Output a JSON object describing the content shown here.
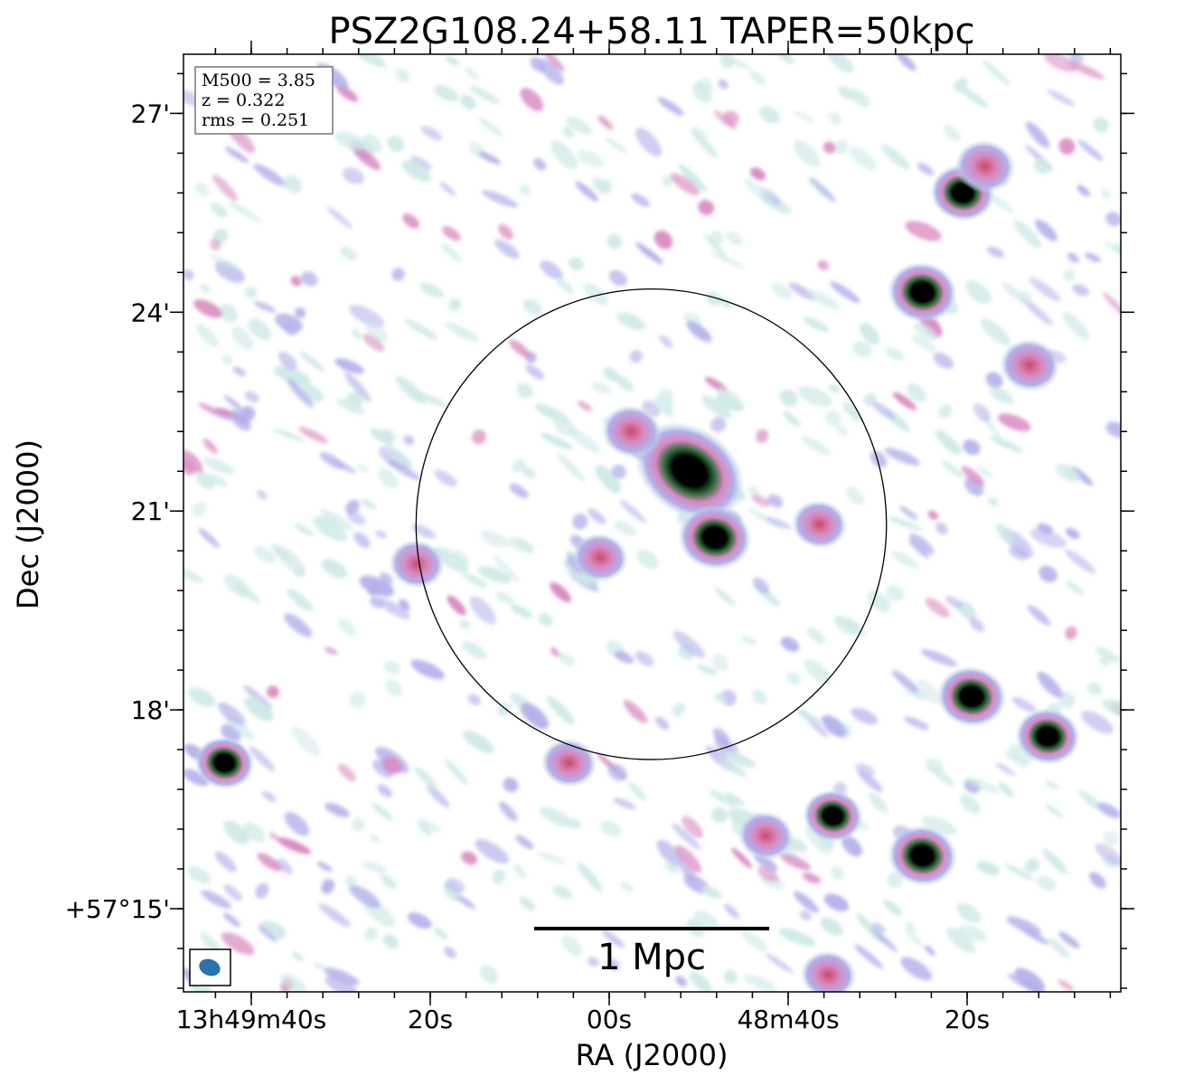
{
  "chart_data": {
    "type": "heatmap",
    "title": "PSZ2G108.24+58.11 TAPER=50kpc",
    "xlabel": "RA (J2000)",
    "ylabel": "Dec (J2000)",
    "x_ticks": [
      {
        "label": "13h49m40s",
        "ra_s": 40
      },
      {
        "label": "20s",
        "ra_s": 20
      },
      {
        "label": "00s",
        "ra_s": 0
      },
      {
        "label": "48m40s",
        "ra_s": -20
      },
      {
        "label": "20s",
        "ra_s": -40
      }
    ],
    "y_ticks": [
      {
        "label": "27'",
        "dec_arcmin": 27
      },
      {
        "label": "24'",
        "dec_arcmin": 24
      },
      {
        "label": "21'",
        "dec_arcmin": 21
      },
      {
        "label": "18'",
        "dec_arcmin": 18
      },
      {
        "label": "+57°15'",
        "dec_arcmin": 15
      }
    ],
    "info_box": [
      "M500 = 3.85",
      "z = 0.322",
      "rms = 0.251"
    ],
    "scale_bar_label": "1 Mpc",
    "circle_center": {
      "ra_s": -4.7,
      "dec_arcmin": 20.8
    },
    "circle_radius_arcmin": 3.55,
    "sources": [
      {
        "ra_s": -9.0,
        "dec_arcmin": 21.6,
        "strength": 1.0,
        "size": 1.6
      },
      {
        "ra_s": -11.8,
        "dec_arcmin": 20.6,
        "strength": 0.6,
        "size": 1.0
      },
      {
        "ra_s": -2.5,
        "dec_arcmin": 22.2,
        "strength": 0.4,
        "size": 0.7
      },
      {
        "ra_s": 1.0,
        "dec_arcmin": 20.3,
        "strength": 0.35,
        "size": 0.6
      },
      {
        "ra_s": 21.5,
        "dec_arcmin": 20.2,
        "strength": 0.35,
        "size": 0.6
      },
      {
        "ra_s": -23.5,
        "dec_arcmin": 20.8,
        "strength": 0.3,
        "size": 0.6
      },
      {
        "ra_s": -35.0,
        "dec_arcmin": 24.3,
        "strength": 0.9,
        "size": 0.9
      },
      {
        "ra_s": -39.5,
        "dec_arcmin": 25.8,
        "strength": 0.7,
        "size": 0.8
      },
      {
        "ra_s": -47.0,
        "dec_arcmin": 23.2,
        "strength": 0.55,
        "size": 0.7
      },
      {
        "ra_s": -40.5,
        "dec_arcmin": 18.2,
        "strength": 0.9,
        "size": 0.9
      },
      {
        "ra_s": -49.0,
        "dec_arcmin": 17.6,
        "strength": 0.85,
        "size": 0.8
      },
      {
        "ra_s": -25.0,
        "dec_arcmin": 16.4,
        "strength": 0.6,
        "size": 0.7
      },
      {
        "ra_s": -35.0,
        "dec_arcmin": 15.8,
        "strength": 0.9,
        "size": 0.9
      },
      {
        "ra_s": -17.5,
        "dec_arcmin": 16.1,
        "strength": 0.45,
        "size": 0.6
      },
      {
        "ra_s": 43.0,
        "dec_arcmin": 17.2,
        "strength": 0.65,
        "size": 0.7
      },
      {
        "ra_s": 4.5,
        "dec_arcmin": 17.2,
        "strength": 0.35,
        "size": 0.6
      },
      {
        "ra_s": -24.5,
        "dec_arcmin": 14.0,
        "strength": 0.4,
        "size": 0.6
      },
      {
        "ra_s": -42.0,
        "dec_arcmin": 26.2,
        "strength": 0.3,
        "size": 0.7
      }
    ],
    "colors": {
      "low": "#cde9e6",
      "mid": "#b3b0ea",
      "high": "#d889c0",
      "peak": "#2e6b3a",
      "core": "#000000",
      "beam": "#2a72b0",
      "circle": "#000000"
    }
  }
}
